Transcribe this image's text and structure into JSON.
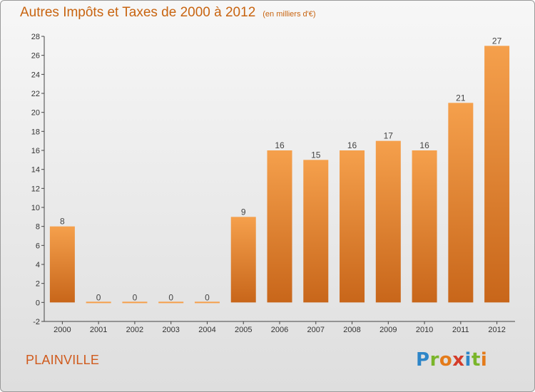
{
  "chart_data": {
    "type": "bar",
    "title": "Autres Impôts et Taxes de 2000 à 2012",
    "subtitle": "(en milliers d'€)",
    "categories": [
      "2000",
      "2001",
      "2002",
      "2003",
      "2004",
      "2005",
      "2006",
      "2007",
      "2008",
      "2009",
      "2010",
      "2011",
      "2012"
    ],
    "values": [
      8,
      0,
      0,
      0,
      0,
      9,
      16,
      15,
      16,
      17,
      16,
      21,
      27
    ],
    "ylim": [
      -2,
      28
    ],
    "yticks": [
      -2,
      0,
      2,
      4,
      6,
      8,
      10,
      12,
      14,
      16,
      18,
      20,
      22,
      24,
      26,
      28
    ],
    "grid": false,
    "bar_color_top": "#f5a04c",
    "bar_color_bottom": "#c8661a"
  },
  "commune": "PLAINVILLE",
  "logo": {
    "letters": [
      "P",
      "r",
      "o",
      "x",
      "i",
      "t",
      "i"
    ],
    "colors": [
      "#2e86c8",
      "#7ab52a",
      "#e47b1a",
      "#d43c2a",
      "#2e86c8",
      "#7ab52a",
      "#e47b1a"
    ]
  }
}
